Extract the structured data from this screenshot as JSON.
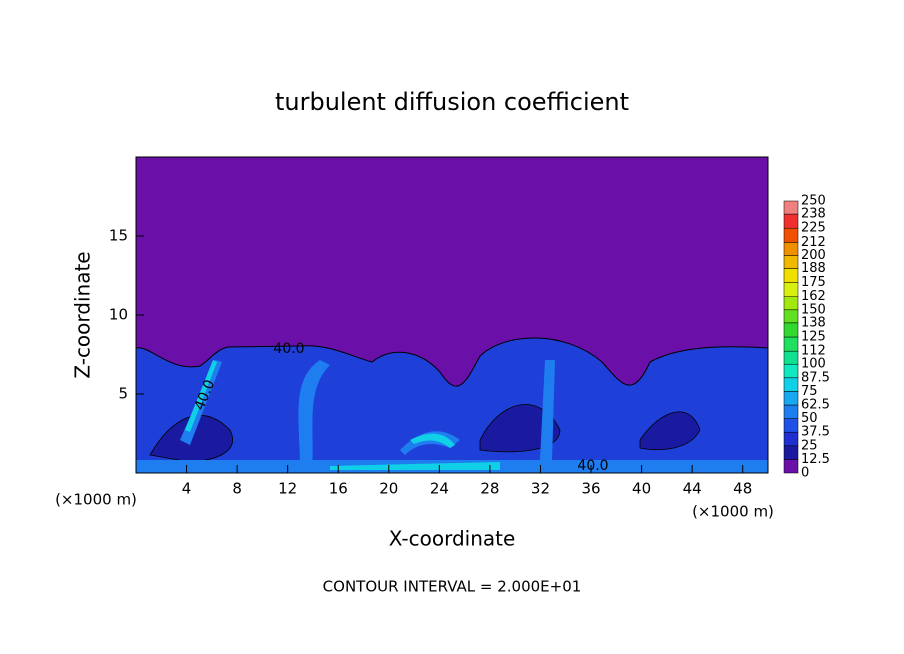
{
  "chart_data": {
    "type": "contour",
    "title": "turbulent diffusion coefficient",
    "xlabel": "X-coordinate",
    "ylabel": "Z-coordinate",
    "x_unit": "(×1000 m)",
    "y_unit": "(×1000 m)",
    "xlim": [
      0,
      50
    ],
    "ylim": [
      0,
      20
    ],
    "xticks": [
      4,
      8,
      12,
      16,
      20,
      24,
      28,
      32,
      36,
      40,
      44,
      48
    ],
    "yticks": [
      5,
      10,
      15
    ],
    "colorbar": {
      "levels": [
        0,
        12.5,
        25,
        37.5,
        50,
        62.5,
        75,
        87.5,
        100,
        112,
        125,
        138,
        150,
        162,
        175,
        188,
        200,
        212,
        225,
        238,
        250
      ],
      "colors": [
        "#6a0fa8",
        "#1a1aa0",
        "#2030d0",
        "#1f50e8",
        "#1e7ef0",
        "#18a8f0",
        "#10d0e8",
        "#10e8c0",
        "#10e090",
        "#20e060",
        "#30d830",
        "#60e020",
        "#a0e810",
        "#d8f010",
        "#f0e000",
        "#f0b800",
        "#f09000",
        "#f05000",
        "#f03030",
        "#f08080"
      ]
    },
    "contour_labels": [
      "40.0",
      "40.0",
      "40.0"
    ],
    "annotation": "CONTOUR INTERVAL = 2.000E+01"
  }
}
